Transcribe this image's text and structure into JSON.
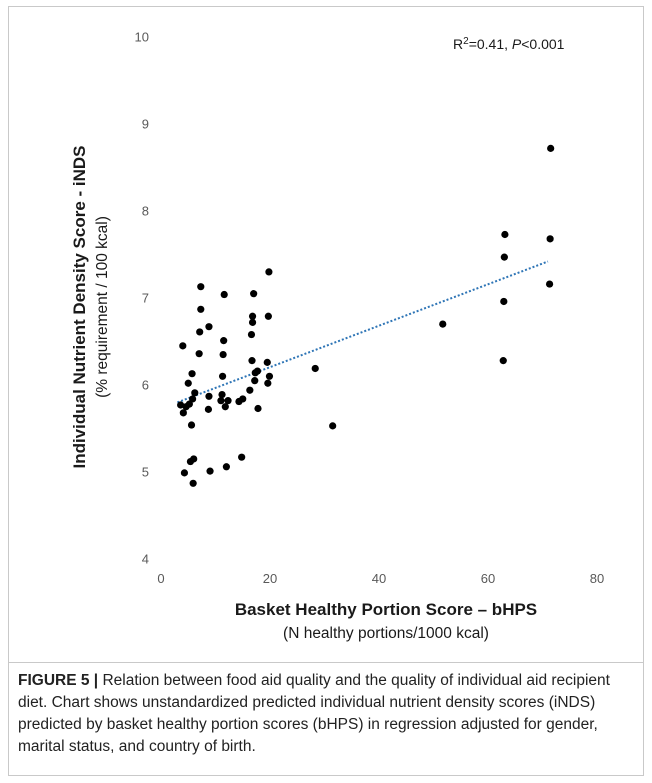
{
  "chart_data": {
    "type": "scatter",
    "title": "",
    "xlabel": "Basket Healthy Portion Score – bHPS",
    "xlabel_sub": "(N healthy portions/1000 kcal)",
    "ylabel": "Individual Nutrient Density Score - iNDS",
    "ylabel_sub": "(% requirement / 100 kcal)",
    "xlim": [
      0,
      80
    ],
    "ylim": [
      4,
      10
    ],
    "x_ticks": [
      0,
      20,
      40,
      60,
      80
    ],
    "y_ticks": [
      4,
      5,
      6,
      7,
      8,
      9,
      10
    ],
    "grid": false,
    "annotation": {
      "r2_prefix": "R",
      "r2_sup": "2",
      "r2_value": "=0.41, ",
      "p_italic": "P",
      "p_value": "<0.001"
    },
    "trendline": {
      "style": "dotted",
      "color": "#2e75b6",
      "x": [
        3,
        71
      ],
      "y": [
        5.8,
        7.42
      ]
    },
    "marker_color": "#000000",
    "points": [
      {
        "x": 3.6,
        "y": 5.77
      },
      {
        "x": 4.0,
        "y": 6.45
      },
      {
        "x": 4.1,
        "y": 5.68
      },
      {
        "x": 4.3,
        "y": 4.99
      },
      {
        "x": 4.6,
        "y": 5.75
      },
      {
        "x": 5.0,
        "y": 6.02
      },
      {
        "x": 5.2,
        "y": 5.78
      },
      {
        "x": 5.4,
        "y": 5.12
      },
      {
        "x": 5.6,
        "y": 5.54
      },
      {
        "x": 5.7,
        "y": 6.13
      },
      {
        "x": 5.8,
        "y": 5.84
      },
      {
        "x": 5.9,
        "y": 4.87
      },
      {
        "x": 6.0,
        "y": 5.15
      },
      {
        "x": 6.2,
        "y": 5.91
      },
      {
        "x": 7.0,
        "y": 6.36
      },
      {
        "x": 7.1,
        "y": 6.61
      },
      {
        "x": 7.3,
        "y": 6.87
      },
      {
        "x": 7.3,
        "y": 7.13
      },
      {
        "x": 8.7,
        "y": 5.72
      },
      {
        "x": 8.8,
        "y": 5.87
      },
      {
        "x": 8.8,
        "y": 6.67
      },
      {
        "x": 9.0,
        "y": 5.01
      },
      {
        "x": 11.0,
        "y": 5.82
      },
      {
        "x": 11.2,
        "y": 5.89
      },
      {
        "x": 11.3,
        "y": 6.1
      },
      {
        "x": 11.4,
        "y": 6.35
      },
      {
        "x": 11.5,
        "y": 6.51
      },
      {
        "x": 11.6,
        "y": 7.04
      },
      {
        "x": 11.8,
        "y": 5.75
      },
      {
        "x": 12.0,
        "y": 5.06
      },
      {
        "x": 12.3,
        "y": 5.82
      },
      {
        "x": 14.3,
        "y": 5.81
      },
      {
        "x": 14.8,
        "y": 5.17
      },
      {
        "x": 15.0,
        "y": 5.84
      },
      {
        "x": 16.3,
        "y": 5.94
      },
      {
        "x": 16.6,
        "y": 6.58
      },
      {
        "x": 16.7,
        "y": 6.28
      },
      {
        "x": 16.8,
        "y": 6.72
      },
      {
        "x": 16.8,
        "y": 6.79
      },
      {
        "x": 17.0,
        "y": 7.05
      },
      {
        "x": 17.2,
        "y": 6.05
      },
      {
        "x": 17.3,
        "y": 6.14
      },
      {
        "x": 17.7,
        "y": 6.16
      },
      {
        "x": 17.8,
        "y": 5.73
      },
      {
        "x": 19.5,
        "y": 6.26
      },
      {
        "x": 19.6,
        "y": 6.02
      },
      {
        "x": 19.7,
        "y": 6.79
      },
      {
        "x": 19.8,
        "y": 7.3
      },
      {
        "x": 19.9,
        "y": 6.1
      },
      {
        "x": 28.3,
        "y": 6.19
      },
      {
        "x": 31.5,
        "y": 5.53
      },
      {
        "x": 51.7,
        "y": 6.7
      },
      {
        "x": 62.8,
        "y": 6.28
      },
      {
        "x": 62.9,
        "y": 6.96
      },
      {
        "x": 63.0,
        "y": 7.47
      },
      {
        "x": 63.1,
        "y": 7.73
      },
      {
        "x": 71.3,
        "y": 7.16
      },
      {
        "x": 71.4,
        "y": 7.68
      },
      {
        "x": 71.5,
        "y": 8.72
      }
    ]
  },
  "caption": {
    "label": "FIGURE 5 |",
    "text": " Relation between food aid quality and the quality of individual aid recipient diet. Chart shows unstandardized predicted individual nutrient density scores (iNDS) predicted by basket healthy portion scores (bHPS) in regression adjusted for gender, marital status, and country of birth."
  }
}
